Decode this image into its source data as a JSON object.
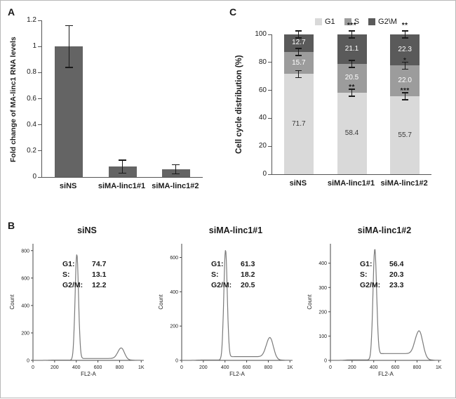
{
  "panels": {
    "a": "A",
    "b": "B",
    "c": "C"
  },
  "colors": {
    "bar": "#646464",
    "g1": "#d9d9d9",
    "s": "#9c9c9c",
    "g2m": "#5a5a5a",
    "axis": "#444444",
    "error": "#1a1a1a",
    "curve": "#7b7b7b"
  },
  "chart_data": [
    {
      "id": "panelA",
      "type": "bar",
      "title": "",
      "ylabel": "Fold change of MA-linc1 RNA levels",
      "categories": [
        "siNS",
        "siMA-linc1#1",
        "siMA-linc1#2"
      ],
      "values": [
        1.0,
        0.08,
        0.06
      ],
      "errors": [
        0.16,
        0.05,
        0.035
      ],
      "ylim": [
        0,
        1.2
      ],
      "yticks": [
        "0",
        "0.2",
        "0.4",
        "0.6",
        "0.8",
        "1",
        "1.2"
      ],
      "ytick_values": [
        0,
        0.2,
        0.4,
        0.6,
        0.8,
        1,
        1.2
      ]
    },
    {
      "id": "panelC",
      "type": "stacked-bar",
      "title": "",
      "ylabel": "Cell cycle distribution (%)",
      "categories": [
        "siNS",
        "siMA-linc1#1",
        "siMA-linc1#2"
      ],
      "legend": [
        "G1",
        "S",
        "G2\\M"
      ],
      "series": [
        {
          "name": "G1",
          "values": [
            71.7,
            58.4,
            55.7
          ],
          "labels": [
            "71.7",
            "58.4",
            "55.7"
          ]
        },
        {
          "name": "S",
          "values": [
            15.7,
            20.5,
            22.0
          ],
          "labels": [
            "15.7",
            "20.5",
            "22.0"
          ]
        },
        {
          "name": "G2\\M",
          "values": [
            12.7,
            21.1,
            22.3
          ],
          "labels": [
            "12.7",
            "21.1",
            "22.3"
          ]
        }
      ],
      "significance": [
        {
          "bar": 1,
          "pos": 106,
          "stars": "***"
        },
        {
          "bar": 1,
          "pos": 62,
          "stars": "**"
        },
        {
          "bar": 2,
          "pos": 106,
          "stars": "**"
        },
        {
          "bar": 2,
          "pos": 81,
          "stars": "*"
        },
        {
          "bar": 2,
          "pos": 59.5,
          "stars": "***"
        }
      ],
      "boundary_error_pct": 2.5,
      "ylim": [
        0,
        100
      ],
      "yticks": [
        "0",
        "20",
        "40",
        "60",
        "80",
        "100"
      ],
      "ytick_values": [
        0,
        20,
        40,
        60,
        80,
        100
      ],
      "legend_position": "top"
    },
    {
      "id": "panelB",
      "type": "line",
      "histograms": [
        {
          "title": "siNS",
          "ylabel": "Count",
          "xlabel": "FL2-A",
          "inset": {
            "g1_label": "G1:",
            "g1_value": "74.7",
            "s_label": "S:",
            "s_value": "13.1",
            "g2m_label": "G2/M:",
            "g2m_value": "12.2"
          },
          "ymax": 850,
          "yticks": [
            "0",
            "200",
            "400",
            "600",
            "800"
          ],
          "ytick_values": [
            0,
            200,
            400,
            600,
            800
          ],
          "xticks": [
            "0",
            "200",
            "400",
            "600",
            "800",
            "1K"
          ],
          "xtick_values": [
            0,
            200,
            400,
            600,
            800,
            1000
          ],
          "xmax": 1024,
          "curve": {
            "g1_mean": 405,
            "g1_sd": 16,
            "g1_height": 770,
            "g2_mean": 815,
            "g2_sd": 30,
            "g2_height": 88,
            "s_level": 12
          }
        },
        {
          "title": "siMA-linc1#1",
          "ylabel": "Count",
          "xlabel": "FL2-A",
          "inset": {
            "g1_label": "G1:",
            "g1_value": "61.3",
            "s_label": "S:",
            "s_value": "18.2",
            "g2m_label": "G2/M:",
            "g2m_value": "20.5"
          },
          "ymax": 680,
          "yticks": [
            "0",
            "200",
            "400",
            "600"
          ],
          "ytick_values": [
            0,
            200,
            400,
            600
          ],
          "xticks": [
            "0",
            "200",
            "400",
            "600",
            "800",
            "1K"
          ],
          "xtick_values": [
            0,
            200,
            400,
            600,
            800,
            1000
          ],
          "xmax": 1024,
          "curve": {
            "g1_mean": 405,
            "g1_sd": 16,
            "g1_height": 640,
            "g2_mean": 815,
            "g2_sd": 32,
            "g2_height": 130,
            "s_level": 20
          }
        },
        {
          "title": "siMA-linc1#2",
          "ylabel": "Count",
          "xlabel": "FL2-A",
          "inset": {
            "g1_label": "G1:",
            "g1_value": "56.4",
            "s_label": "S:",
            "s_value": "20.3",
            "g2m_label": "G2/M:",
            "g2m_value": "23.3"
          },
          "ymax": 480,
          "yticks": [
            "0",
            "100",
            "200",
            "300",
            "400"
          ],
          "ytick_values": [
            0,
            100,
            200,
            300,
            400
          ],
          "xticks": [
            "0",
            "200",
            "400",
            "600",
            "800",
            "1K"
          ],
          "xtick_values": [
            0,
            200,
            400,
            600,
            800,
            1000
          ],
          "xmax": 1024,
          "curve": {
            "g1_mean": 410,
            "g1_sd": 17,
            "g1_height": 455,
            "g2_mean": 820,
            "g2_sd": 34,
            "g2_height": 118,
            "s_level": 26
          }
        }
      ]
    }
  ]
}
